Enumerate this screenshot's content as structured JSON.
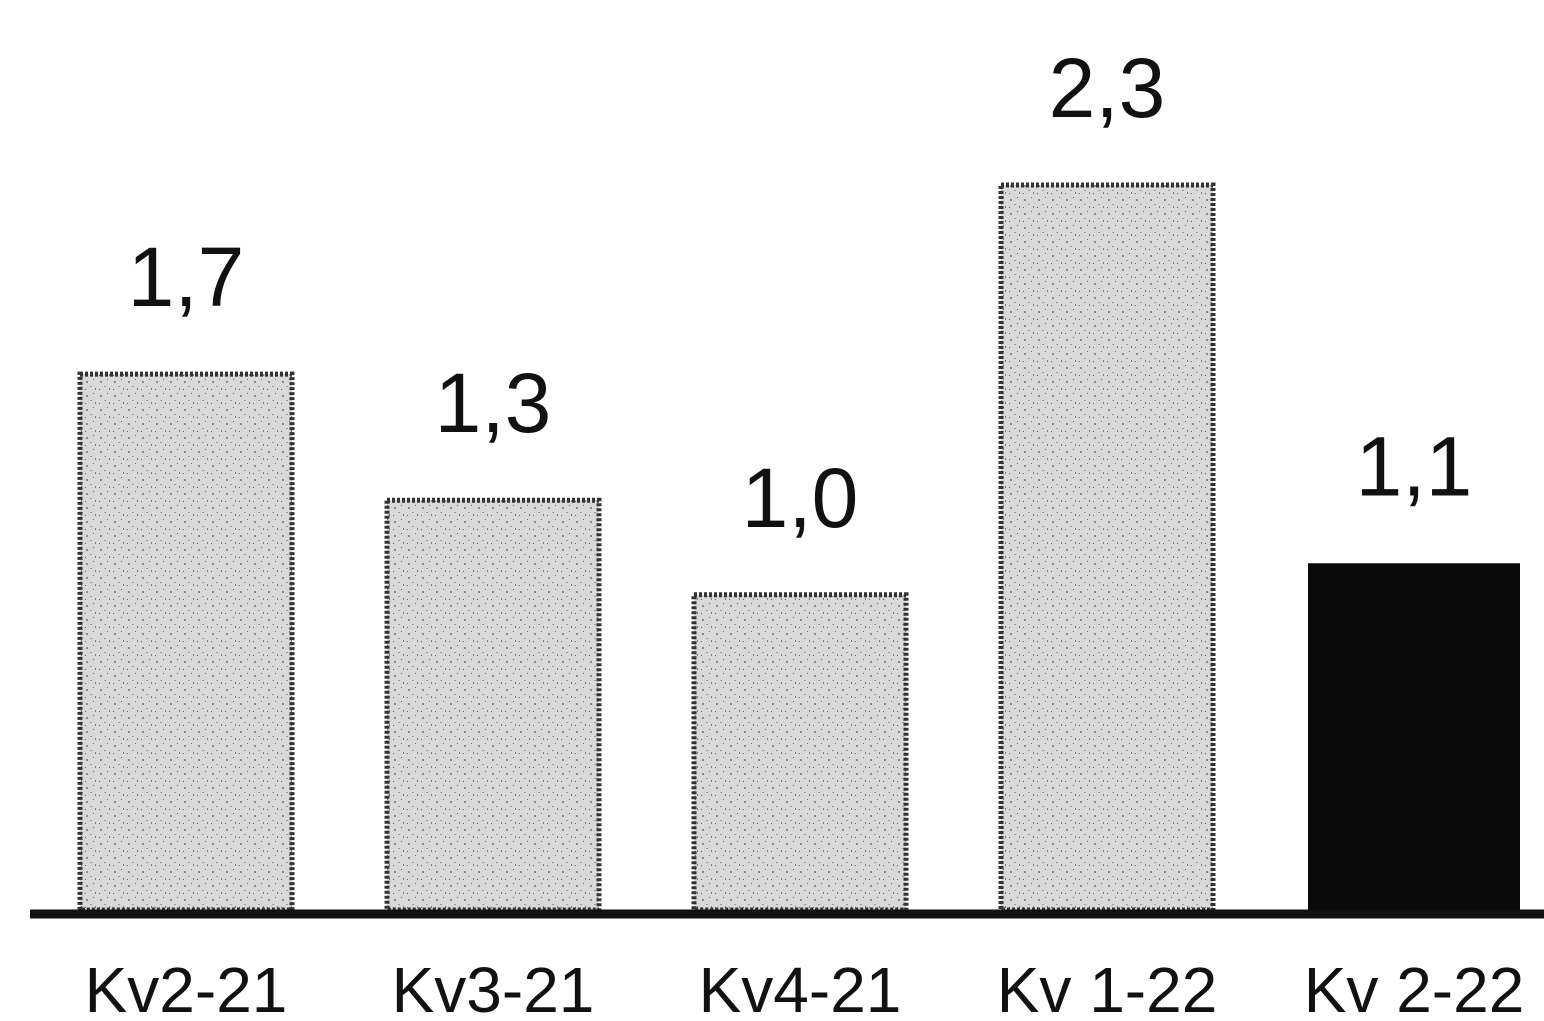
{
  "chart_data": {
    "type": "bar",
    "categories": [
      "Kv2-21",
      "Kv3-21",
      "Kv4-21",
      "Kv 1-22",
      "Kv 2-22"
    ],
    "values": [
      1.7,
      1.3,
      1.0,
      2.3,
      1.1
    ],
    "value_labels": [
      "1,7",
      "1,3",
      "1,0",
      "2,3",
      "1,1"
    ],
    "title": "",
    "xlabel": "",
    "ylabel": "",
    "ylim": [
      0,
      2.3
    ],
    "grid": false,
    "legend": "none",
    "colors": {
      "past_bars": "#d6d6d6",
      "past_bar_border": "#333333",
      "highlight_bar": "#0a0a0a",
      "axis": "#111111"
    },
    "highlight_index": 4
  }
}
